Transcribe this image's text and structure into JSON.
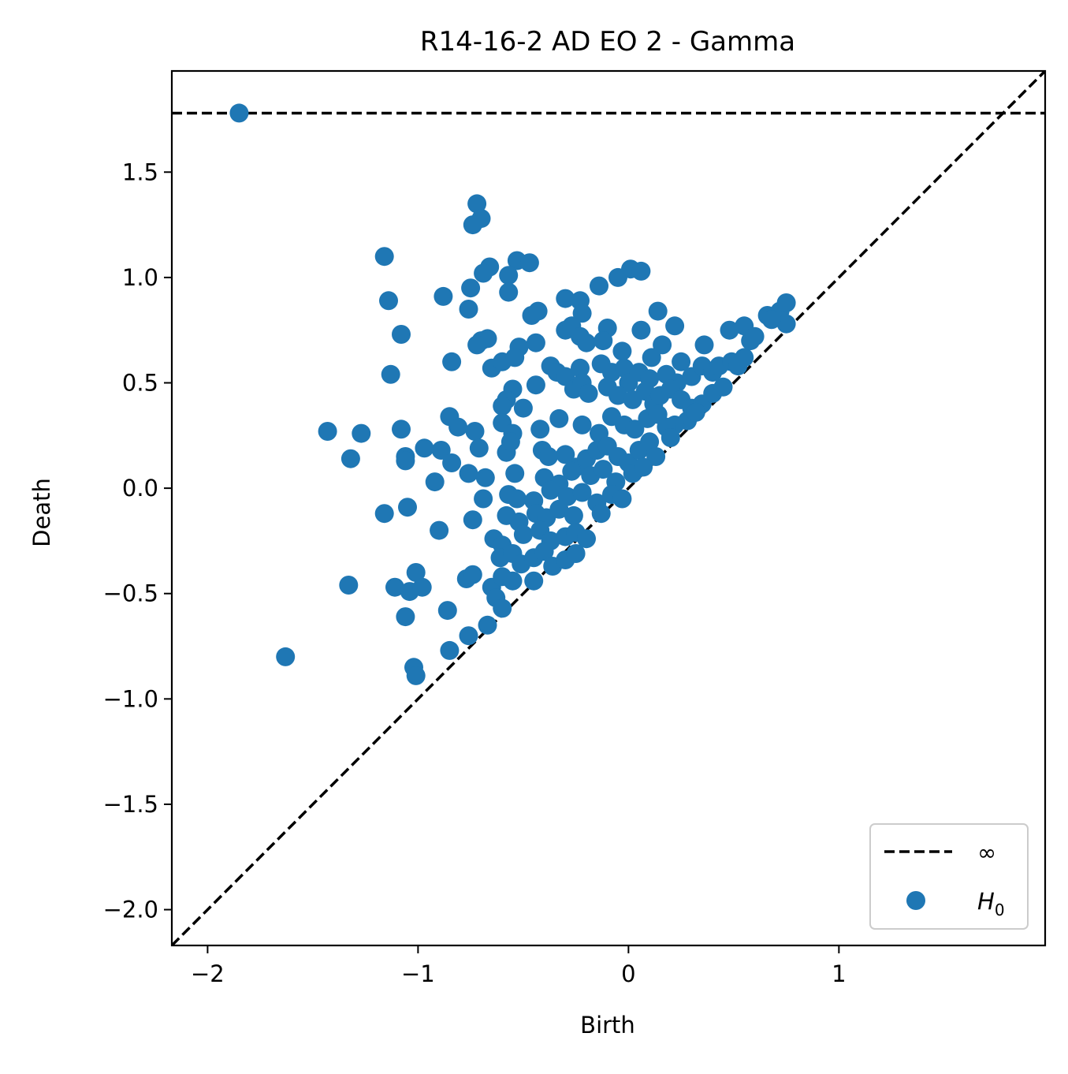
{
  "chart_data": {
    "type": "scatter",
    "title": "R14-16-2 AD EO 2 - Gamma",
    "xlabel": "Birth",
    "ylabel": "Death",
    "xlim": [
      -2.17,
      1.98
    ],
    "ylim": [
      -2.17,
      1.98
    ],
    "xticks": [
      {
        "value": -2,
        "label": "−2"
      },
      {
        "value": -1,
        "label": "−1"
      },
      {
        "value": 0,
        "label": "0"
      },
      {
        "value": 1,
        "label": "1"
      }
    ],
    "yticks": [
      {
        "value": -2.0,
        "label": "−2.0"
      },
      {
        "value": -1.5,
        "label": "−1.5"
      },
      {
        "value": -1.0,
        "label": "−1.0"
      },
      {
        "value": -0.5,
        "label": "−0.5"
      },
      {
        "value": 0.0,
        "label": "0.0"
      },
      {
        "value": 0.5,
        "label": "0.5"
      },
      {
        "value": 1.0,
        "label": "1.0"
      },
      {
        "value": 1.5,
        "label": "1.5"
      }
    ],
    "infinity_line_y": 1.78,
    "diagonal": true,
    "grid": false,
    "legend": {
      "position": "bottom-right",
      "entries": [
        {
          "label": "∞",
          "style": "dashed-line",
          "color": "#000000"
        },
        {
          "label": "H",
          "subscript": "0",
          "style": "marker",
          "color": "#1f77b4"
        }
      ]
    },
    "series": [
      {
        "color": "#1f77b4",
        "points": [
          [
            -1.85,
            1.78
          ],
          [
            -0.72,
            1.35
          ],
          [
            -0.7,
            1.28
          ],
          [
            -0.74,
            1.25
          ],
          [
            -1.16,
            1.1
          ],
          [
            -0.53,
            1.08
          ],
          [
            -0.47,
            1.07
          ],
          [
            -0.66,
            1.05
          ],
          [
            -0.69,
            1.02
          ],
          [
            -0.57,
            1.01
          ],
          [
            0.01,
            1.04
          ],
          [
            0.06,
            1.03
          ],
          [
            -0.05,
            1.0
          ],
          [
            -0.14,
            0.96
          ],
          [
            -0.88,
            0.91
          ],
          [
            -0.57,
            0.93
          ],
          [
            -0.75,
            0.95
          ],
          [
            -1.14,
            0.89
          ],
          [
            -0.3,
            0.9
          ],
          [
            -0.23,
            0.89
          ],
          [
            -0.22,
            0.83
          ],
          [
            -0.46,
            0.82
          ],
          [
            -0.43,
            0.84
          ],
          [
            -0.76,
            0.85
          ],
          [
            0.14,
            0.84
          ],
          [
            0.22,
            0.77
          ],
          [
            0.06,
            0.75
          ],
          [
            -0.1,
            0.76
          ],
          [
            -1.08,
            0.73
          ],
          [
            -0.7,
            0.7
          ],
          [
            -0.67,
            0.71
          ],
          [
            -0.72,
            0.68
          ],
          [
            -0.3,
            0.75
          ],
          [
            -0.27,
            0.77
          ],
          [
            -0.23,
            0.72
          ],
          [
            -0.2,
            0.69
          ],
          [
            -0.12,
            0.7
          ],
          [
            -0.03,
            0.65
          ],
          [
            0.16,
            0.68
          ],
          [
            0.11,
            0.62
          ],
          [
            -0.44,
            0.69
          ],
          [
            -0.52,
            0.67
          ],
          [
            -0.84,
            0.6
          ],
          [
            -1.13,
            0.54
          ],
          [
            -0.65,
            0.57
          ],
          [
            -0.6,
            0.6
          ],
          [
            -0.54,
            0.62
          ],
          [
            -0.37,
            0.58
          ],
          [
            -0.34,
            0.55
          ],
          [
            -0.3,
            0.53
          ],
          [
            -0.23,
            0.57
          ],
          [
            -0.13,
            0.59
          ],
          [
            -0.08,
            0.55
          ],
          [
            -0.02,
            0.57
          ],
          [
            0.0,
            0.5
          ],
          [
            0.05,
            0.55
          ],
          [
            0.1,
            0.52
          ],
          [
            0.18,
            0.54
          ],
          [
            0.23,
            0.5
          ],
          [
            0.3,
            0.53
          ],
          [
            0.35,
            0.58
          ],
          [
            0.4,
            0.55
          ],
          [
            0.43,
            0.58
          ],
          [
            0.49,
            0.6
          ],
          [
            0.52,
            0.58
          ],
          [
            0.55,
            0.62
          ],
          [
            0.58,
            0.7
          ],
          [
            0.48,
            0.75
          ],
          [
            0.55,
            0.77
          ],
          [
            0.6,
            0.72
          ],
          [
            0.66,
            0.82
          ],
          [
            0.72,
            0.84
          ],
          [
            0.75,
            0.88
          ],
          [
            0.75,
            0.78
          ],
          [
            0.68,
            0.8
          ],
          [
            0.36,
            0.68
          ],
          [
            0.25,
            0.6
          ],
          [
            -0.44,
            0.49
          ],
          [
            -0.55,
            0.47
          ],
          [
            -0.58,
            0.42
          ],
          [
            -0.6,
            0.39
          ],
          [
            -0.5,
            0.38
          ],
          [
            -0.26,
            0.47
          ],
          [
            -0.22,
            0.5
          ],
          [
            -0.19,
            0.45
          ],
          [
            -0.1,
            0.48
          ],
          [
            -0.05,
            0.44
          ],
          [
            0.02,
            0.42
          ],
          [
            0.08,
            0.46
          ],
          [
            0.12,
            0.4
          ],
          [
            0.15,
            0.44
          ],
          [
            0.2,
            0.47
          ],
          [
            0.25,
            0.42
          ],
          [
            0.3,
            0.38
          ],
          [
            0.35,
            0.4
          ],
          [
            0.4,
            0.45
          ],
          [
            0.45,
            0.48
          ],
          [
            0.28,
            0.32
          ],
          [
            0.32,
            0.36
          ],
          [
            0.22,
            0.3
          ],
          [
            -0.85,
            0.34
          ],
          [
            -0.81,
            0.29
          ],
          [
            -0.73,
            0.27
          ],
          [
            -0.6,
            0.31
          ],
          [
            -0.55,
            0.26
          ],
          [
            -0.42,
            0.28
          ],
          [
            -0.33,
            0.33
          ],
          [
            -0.22,
            0.3
          ],
          [
            -0.14,
            0.26
          ],
          [
            -0.08,
            0.34
          ],
          [
            -0.02,
            0.3
          ],
          [
            0.03,
            0.28
          ],
          [
            0.09,
            0.33
          ],
          [
            0.14,
            0.35
          ],
          [
            0.18,
            0.29
          ],
          [
            -1.43,
            0.27
          ],
          [
            -1.27,
            0.26
          ],
          [
            -1.08,
            0.28
          ],
          [
            -0.97,
            0.19
          ],
          [
            -1.06,
            0.15
          ],
          [
            -1.06,
            0.13
          ],
          [
            -1.32,
            0.14
          ],
          [
            -0.89,
            0.18
          ],
          [
            -0.84,
            0.12
          ],
          [
            -0.71,
            0.19
          ],
          [
            -0.58,
            0.17
          ],
          [
            -0.56,
            0.22
          ],
          [
            -0.41,
            0.18
          ],
          [
            -0.38,
            0.15
          ],
          [
            -0.3,
            0.16
          ],
          [
            -0.25,
            0.1
          ],
          [
            -0.2,
            0.14
          ],
          [
            -0.15,
            0.18
          ],
          [
            -0.1,
            0.2
          ],
          [
            -0.05,
            0.15
          ],
          [
            0.0,
            0.12
          ],
          [
            0.05,
            0.18
          ],
          [
            0.1,
            0.22
          ],
          [
            0.13,
            0.15
          ],
          [
            0.2,
            0.24
          ],
          [
            -0.76,
            0.07
          ],
          [
            -0.68,
            0.05
          ],
          [
            -0.54,
            0.07
          ],
          [
            -0.4,
            0.05
          ],
          [
            -0.33,
            0.02
          ],
          [
            -0.27,
            0.08
          ],
          [
            -0.18,
            0.06
          ],
          [
            -0.12,
            0.09
          ],
          [
            -0.06,
            0.03
          ],
          [
            0.02,
            0.07
          ],
          [
            0.07,
            0.1
          ],
          [
            -0.92,
            0.03
          ],
          [
            -0.69,
            -0.05
          ],
          [
            -0.57,
            -0.03
          ],
          [
            -0.53,
            -0.05
          ],
          [
            -0.45,
            -0.06
          ],
          [
            -0.37,
            -0.01
          ],
          [
            -0.29,
            -0.04
          ],
          [
            -0.22,
            -0.02
          ],
          [
            -0.15,
            -0.07
          ],
          [
            -0.08,
            -0.03
          ],
          [
            -0.03,
            -0.05
          ],
          [
            -1.16,
            -0.12
          ],
          [
            -1.05,
            -0.09
          ],
          [
            -0.74,
            -0.15
          ],
          [
            -0.58,
            -0.13
          ],
          [
            -0.52,
            -0.16
          ],
          [
            -0.44,
            -0.12
          ],
          [
            -0.39,
            -0.14
          ],
          [
            -0.33,
            -0.1
          ],
          [
            -0.26,
            -0.13
          ],
          [
            -0.13,
            -0.12
          ],
          [
            -0.9,
            -0.2
          ],
          [
            -0.64,
            -0.24
          ],
          [
            -0.6,
            -0.27
          ],
          [
            -0.5,
            -0.22
          ],
          [
            -0.42,
            -0.2
          ],
          [
            -0.37,
            -0.25
          ],
          [
            -0.3,
            -0.23
          ],
          [
            -0.25,
            -0.21
          ],
          [
            -0.2,
            -0.24
          ],
          [
            -0.61,
            -0.33
          ],
          [
            -0.55,
            -0.31
          ],
          [
            -0.51,
            -0.36
          ],
          [
            -0.45,
            -0.33
          ],
          [
            -0.4,
            -0.3
          ],
          [
            -0.36,
            -0.37
          ],
          [
            -0.3,
            -0.34
          ],
          [
            -0.25,
            -0.31
          ],
          [
            -1.33,
            -0.46
          ],
          [
            -1.11,
            -0.47
          ],
          [
            -1.01,
            -0.4
          ],
          [
            -1.04,
            -0.49
          ],
          [
            -0.98,
            -0.47
          ],
          [
            -0.77,
            -0.43
          ],
          [
            -0.74,
            -0.41
          ],
          [
            -0.65,
            -0.47
          ],
          [
            -0.6,
            -0.42
          ],
          [
            -0.55,
            -0.44
          ],
          [
            -0.45,
            -0.44
          ],
          [
            -0.63,
            -0.52
          ],
          [
            -0.86,
            -0.58
          ],
          [
            -1.06,
            -0.61
          ],
          [
            -0.6,
            -0.57
          ],
          [
            -0.76,
            -0.7
          ],
          [
            -0.67,
            -0.65
          ],
          [
            -0.85,
            -0.77
          ],
          [
            -1.63,
            -0.8
          ],
          [
            -1.02,
            -0.85
          ],
          [
            -1.01,
            -0.89
          ]
        ]
      }
    ]
  }
}
